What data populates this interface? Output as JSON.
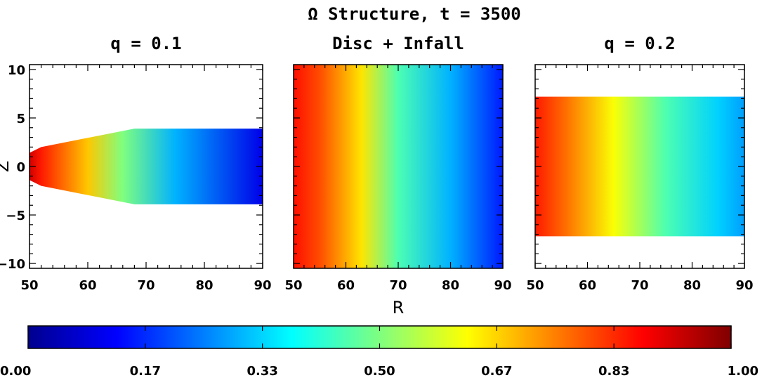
{
  "figure": {
    "title": "Ω Structure, t = 3500"
  },
  "colors": {
    "jet": [
      "#00008f",
      "#0000ff",
      "#007fff",
      "#00ffff",
      "#7fff7f",
      "#ffff00",
      "#ff7f00",
      "#ff0000",
      "#7f0000"
    ],
    "axes": "#000000",
    "background": "#ffffff"
  },
  "chart_data": [
    {
      "type": "heatmap",
      "title": "q = 0.1",
      "xlabel": "",
      "ylabel": "Z",
      "xlim": [
        50,
        90
      ],
      "ylim": [
        -10.5,
        10.5
      ],
      "x_ticks": [
        "50",
        "60",
        "70",
        "80",
        "90"
      ],
      "y_ticks": [
        "10",
        "5",
        "0",
        "−5",
        "−10"
      ],
      "color_profile": {
        "x": [
          50,
          52,
          60,
          66,
          75,
          90
        ],
        "value": [
          0.92,
          0.85,
          0.68,
          0.5,
          0.3,
          0.1
        ]
      },
      "region_outline": {
        "x": [
          50,
          52,
          68,
          90
        ],
        "z_half_height": [
          1.4,
          2.0,
          3.9,
          3.9
        ]
      }
    },
    {
      "type": "heatmap",
      "title": "Disc + Infall",
      "xlabel": "R",
      "ylabel": "",
      "xlim": [
        50,
        90
      ],
      "ylim": [
        -10.5,
        10.5
      ],
      "x_ticks": [
        "50",
        "60",
        "70",
        "80",
        "90"
      ],
      "y_ticks": [],
      "color_profile": {
        "x": [
          50,
          55,
          63,
          70,
          80,
          90
        ],
        "value": [
          0.86,
          0.8,
          0.65,
          0.45,
          0.3,
          0.15
        ]
      },
      "region_outline": {
        "x": [
          50,
          90
        ],
        "z_half_height": [
          10.5,
          10.5
        ]
      }
    },
    {
      "type": "heatmap",
      "title": "q = 0.2",
      "xlabel": "",
      "ylabel": "",
      "xlim": [
        50,
        90
      ],
      "ylim": [
        -10.5,
        10.5
      ],
      "x_ticks": [
        "50",
        "60",
        "70",
        "80",
        "90"
      ],
      "y_ticks": [],
      "color_profile": {
        "x": [
          50,
          55,
          65,
          75,
          85,
          90
        ],
        "value": [
          0.85,
          0.78,
          0.62,
          0.45,
          0.33,
          0.28
        ]
      },
      "region_outline": {
        "x": [
          50,
          90
        ],
        "z_half_height": [
          7.2,
          7.2
        ]
      }
    }
  ],
  "colorbar": {
    "min": 0,
    "max": 1,
    "ticks": [
      "0.00",
      "0.17",
      "0.33",
      "0.50",
      "0.67",
      "0.83",
      "1.00"
    ]
  }
}
